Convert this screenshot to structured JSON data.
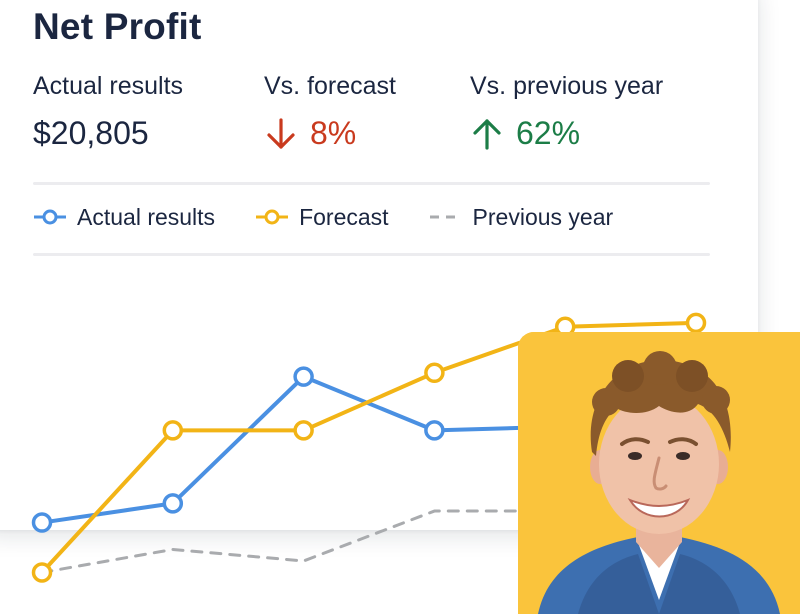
{
  "title": "Net Profit",
  "kpis": {
    "actual": {
      "label": "Actual results",
      "value": "$20,805"
    },
    "forecast": {
      "label": "Vs. forecast",
      "value": "8%",
      "direction": "down",
      "color": "#c93a1e"
    },
    "previous": {
      "label": "Vs. previous year",
      "value": "62%",
      "direction": "up",
      "color": "#1c7d47"
    }
  },
  "legend": {
    "actual": "Actual results",
    "forecast": "Forecast",
    "previous": "Previous year"
  },
  "chart_data": {
    "type": "line",
    "x": [
      1,
      2,
      3,
      4,
      5,
      6
    ],
    "ylim": [
      0,
      10
    ],
    "grid": false,
    "legend_position": "top",
    "series": [
      {
        "name": "Actual results",
        "color": "#4a90e2",
        "style": "solid-markers",
        "values": [
          1.6,
          2.1,
          5.4,
          4.0,
          4.1,
          null
        ]
      },
      {
        "name": "Forecast",
        "color": "#f2b416",
        "style": "solid-markers",
        "values": [
          0.3,
          4.0,
          4.0,
          5.5,
          6.7,
          6.8
        ]
      },
      {
        "name": "Previous year",
        "color": "#a9abae",
        "style": "dashed",
        "values": [
          0.3,
          0.9,
          0.6,
          1.9,
          1.9,
          null
        ]
      }
    ]
  },
  "photo": {
    "subject": "smiling man with curly hair in a blue blazer",
    "background": "#fac43c"
  }
}
